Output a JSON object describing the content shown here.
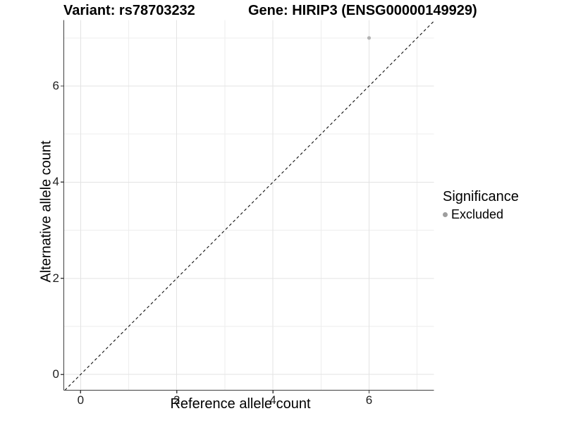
{
  "titles": {
    "variant": "Variant: rs78703232",
    "gene": "Gene: HIRIP3 (ENSG00000149929)"
  },
  "axes": {
    "x": {
      "label": "Reference allele count",
      "tick_labels": [
        "0",
        "2",
        "4",
        "6"
      ]
    },
    "y": {
      "label": "Alternative allele count",
      "tick_labels": [
        "0",
        "2",
        "4",
        "6"
      ]
    }
  },
  "legend": {
    "title": "Significance",
    "items": [
      {
        "label": "Excluded",
        "color": "#9e9e9e"
      }
    ]
  },
  "colors": {
    "point": "#b3b3b3",
    "legend_key": "#9e9e9e",
    "grid_major": "#e3e3e3",
    "grid_minor": "#eeeeee",
    "axis_line": "#404040",
    "reference_line": "#111111",
    "background": "#ffffff"
  },
  "chart_data": {
    "type": "scatter",
    "title": "Variant: rs78703232 | Gene: HIRIP3 (ENSG00000149929)",
    "xlabel": "Reference allele count",
    "ylabel": "Alternative allele count",
    "xlim": [
      -0.35,
      7.35
    ],
    "ylim": [
      -0.35,
      7.35
    ],
    "x_ticks": [
      0,
      2,
      4,
      6
    ],
    "y_ticks": [
      0,
      2,
      4,
      6
    ],
    "grid": "on",
    "grid_major": [
      0,
      2,
      4,
      6
    ],
    "grid_minor": [
      1,
      3,
      5,
      7
    ],
    "series": [
      {
        "name": "Excluded",
        "color": "#b3b3b3",
        "points": [
          {
            "x": 6,
            "y": 7
          }
        ]
      }
    ],
    "reference_line": {
      "type": "identity",
      "slope": 1,
      "intercept": 0,
      "style": "dashed",
      "color": "#111111"
    },
    "legend": {
      "title": "Significance",
      "position": "right",
      "entries": [
        "Excluded"
      ]
    }
  }
}
